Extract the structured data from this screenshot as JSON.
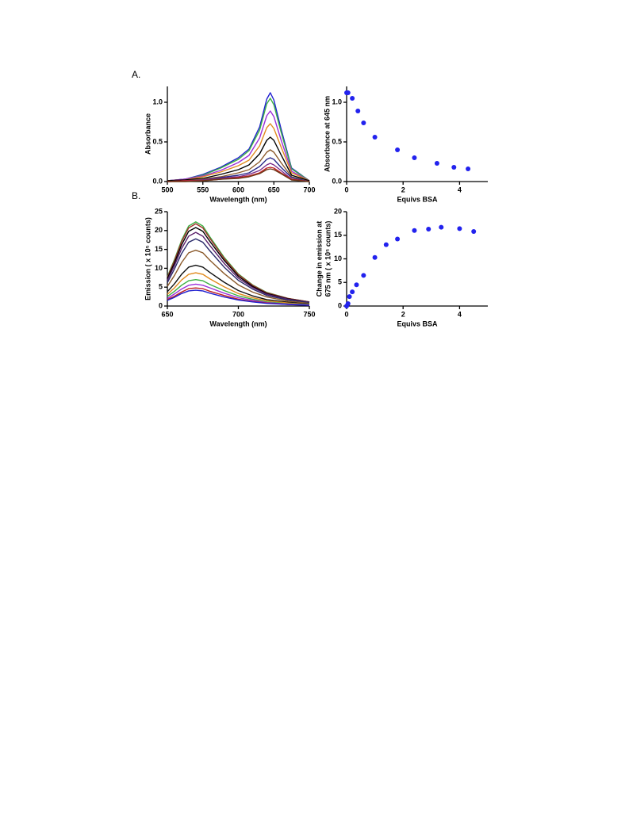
{
  "panel_labels": [
    "A.",
    "B."
  ],
  "chart_data": [
    {
      "type": "line",
      "xlabel": "Wavelength (nm)",
      "ylabel": "Absorbance",
      "x": [
        500,
        525,
        550,
        575,
        600,
        615,
        630,
        640,
        645,
        650,
        660,
        675,
        700
      ],
      "xlim": [
        500,
        700
      ],
      "xticks": [
        500,
        550,
        600,
        650,
        700
      ],
      "ylim": [
        0,
        1.2
      ],
      "yticks": [
        {
          "value": 0,
          "label": "0.0"
        },
        {
          "value": 0.5,
          "label": "0.5"
        },
        {
          "value": 1,
          "label": "1.0"
        }
      ],
      "series": [
        {
          "color": "#1f1fd0",
          "values": [
            0.01,
            0.03,
            0.09,
            0.18,
            0.3,
            0.41,
            0.69,
            1.04,
            1.12,
            1.03,
            0.67,
            0.17,
            0.01
          ]
        },
        {
          "color": "#3cb043",
          "values": [
            0.01,
            0.03,
            0.08,
            0.17,
            0.28,
            0.39,
            0.65,
            0.98,
            1.05,
            0.97,
            0.63,
            0.16,
            0.01
          ]
        },
        {
          "color": "#9b30d9",
          "values": [
            0.01,
            0.03,
            0.07,
            0.14,
            0.24,
            0.33,
            0.55,
            0.83,
            0.89,
            0.82,
            0.53,
            0.13,
            0.01
          ]
        },
        {
          "color": "#e08a1e",
          "values": [
            0.01,
            0.02,
            0.06,
            0.12,
            0.2,
            0.27,
            0.45,
            0.68,
            0.73,
            0.67,
            0.44,
            0.11,
            0.01
          ]
        },
        {
          "color": "#000000",
          "values": [
            0.01,
            0.02,
            0.04,
            0.09,
            0.15,
            0.21,
            0.35,
            0.52,
            0.56,
            0.52,
            0.34,
            0.08,
            0.01
          ]
        },
        {
          "color": "#8b5a2b",
          "values": [
            0,
            0.01,
            0.03,
            0.06,
            0.11,
            0.15,
            0.25,
            0.37,
            0.4,
            0.37,
            0.24,
            0.06,
            0
          ]
        },
        {
          "color": "#2a2a8a",
          "values": [
            0,
            0.01,
            0.02,
            0.05,
            0.08,
            0.11,
            0.19,
            0.28,
            0.3,
            0.28,
            0.18,
            0.05,
            0
          ]
        },
        {
          "color": "#7a2a8a",
          "values": [
            0,
            0.01,
            0.02,
            0.04,
            0.06,
            0.09,
            0.14,
            0.21,
            0.23,
            0.21,
            0.14,
            0.03,
            0
          ]
        },
        {
          "color": "#c02020",
          "values": [
            0,
            0.01,
            0.01,
            0.03,
            0.05,
            0.07,
            0.11,
            0.17,
            0.18,
            0.17,
            0.11,
            0.03,
            0
          ]
        },
        {
          "color": "#6b3a1a",
          "values": [
            0,
            0,
            0.01,
            0.03,
            0.04,
            0.06,
            0.1,
            0.15,
            0.16,
            0.15,
            0.1,
            0.02,
            0
          ]
        }
      ]
    },
    {
      "type": "scatter",
      "xlabel": "Equivs BSA",
      "ylabel": "Absorbance at 645 nm",
      "color": "#2222ee",
      "x": [
        0,
        0.05,
        0.2,
        0.4,
        0.6,
        1.0,
        1.8,
        2.4,
        3.2,
        3.8,
        4.3
      ],
      "values": [
        1.12,
        1.12,
        1.05,
        0.89,
        0.74,
        0.56,
        0.4,
        0.3,
        0.23,
        0.18,
        0.16
      ],
      "xlim": [
        0,
        5
      ],
      "xticks": [
        0,
        2,
        4
      ],
      "ylim": [
        0,
        1.2
      ],
      "yticks": [
        {
          "value": 0,
          "label": "0.0"
        },
        {
          "value": 0.5,
          "label": "0.5"
        },
        {
          "value": 1,
          "label": "1.0"
        }
      ]
    },
    {
      "type": "line",
      "xlabel": "Wavelength (nm)",
      "ylabel": "Emission ( x 10⁵ counts)",
      "x": [
        650,
        655,
        660,
        665,
        670,
        675,
        680,
        690,
        700,
        710,
        720,
        735,
        750
      ],
      "xlim": [
        650,
        750
      ],
      "xticks": [
        650,
        700,
        750
      ],
      "ylim": [
        0,
        25
      ],
      "yticks": [
        0,
        5,
        10,
        15,
        20,
        25
      ],
      "series": [
        {
          "color": "#3cb043",
          "values": [
            7.8,
            12.3,
            17.4,
            21.2,
            22.3,
            21.2,
            18.3,
            12.9,
            8.5,
            5.6,
            3.6,
            2.0,
            1.1
          ]
        },
        {
          "color": "#a0302a",
          "values": [
            7.6,
            12.0,
            17.0,
            20.7,
            21.8,
            20.7,
            17.9,
            12.6,
            8.3,
            5.5,
            3.5,
            2.0,
            1.1
          ]
        },
        {
          "color": "#000000",
          "values": [
            7.3,
            11.4,
            16.2,
            19.8,
            20.8,
            19.8,
            17.1,
            12.1,
            7.9,
            5.2,
            3.3,
            1.9,
            1.0
          ]
        },
        {
          "color": "#5a1f6a",
          "values": [
            6.8,
            10.7,
            15.2,
            18.5,
            19.5,
            18.5,
            16.0,
            11.3,
            7.4,
            4.9,
            3.1,
            1.8,
            1.0
          ]
        },
        {
          "color": "#2a2a6a",
          "values": [
            6.2,
            9.8,
            13.9,
            16.9,
            17.8,
            16.9,
            14.6,
            10.3,
            6.8,
            4.5,
            2.8,
            1.6,
            0.9
          ]
        },
        {
          "color": "#8b5a2b",
          "values": [
            5.2,
            8.1,
            11.5,
            14.1,
            14.8,
            14.1,
            12.1,
            8.6,
            5.6,
            3.7,
            2.4,
            1.3,
            0.7
          ]
        },
        {
          "color": "#111111",
          "values": [
            3.8,
            5.9,
            8.4,
            10.3,
            10.8,
            10.3,
            8.9,
            6.3,
            4.1,
            2.7,
            1.7,
            1.0,
            0.5
          ]
        },
        {
          "color": "#e08a1e",
          "values": [
            3.1,
            4.8,
            6.9,
            8.4,
            8.8,
            8.4,
            7.2,
            5.1,
            3.3,
            2.2,
            1.4,
            0.8,
            0.4
          ]
        },
        {
          "color": "#3cb043",
          "values": [
            2.5,
            3.9,
            5.5,
            6.7,
            7.0,
            6.7,
            5.7,
            4.1,
            2.7,
            1.8,
            1.1,
            0.6,
            0.4
          ]
        },
        {
          "color": "#9b30d9",
          "values": [
            2.0,
            3.2,
            4.5,
            5.5,
            5.8,
            5.5,
            4.8,
            3.4,
            2.2,
            1.5,
            0.9,
            0.5,
            0.3
          ]
        },
        {
          "color": "#c02020",
          "values": [
            1.7,
            2.6,
            3.7,
            4.6,
            4.8,
            4.6,
            3.9,
            2.8,
            1.8,
            1.2,
            0.8,
            0.4,
            0.2
          ]
        },
        {
          "color": "#1f1fd0",
          "values": [
            1.5,
            2.3,
            3.3,
            4.0,
            4.2,
            4.0,
            3.4,
            2.4,
            1.6,
            1.1,
            0.7,
            0.4,
            0.2
          ]
        }
      ]
    },
    {
      "type": "scatter",
      "xlabel": "Equivs BSA",
      "ylabel_lines": [
        "Change in emission at",
        "675 nm ( x 10⁵ counts)"
      ],
      "color": "#2222ee",
      "x": [
        0,
        0.05,
        0.1,
        0.2,
        0.35,
        0.6,
        1.0,
        1.4,
        1.8,
        2.4,
        2.9,
        3.35,
        4.0,
        4.5
      ],
      "values": [
        0,
        0.5,
        2.0,
        3.0,
        4.5,
        6.5,
        10.3,
        13.0,
        14.2,
        16.0,
        16.3,
        16.7,
        16.4,
        15.8
      ],
      "xlim": [
        0,
        5
      ],
      "xticks": [
        0,
        2,
        4
      ],
      "ylim": [
        0,
        20
      ],
      "yticks": [
        0,
        5,
        10,
        15,
        20
      ]
    }
  ]
}
